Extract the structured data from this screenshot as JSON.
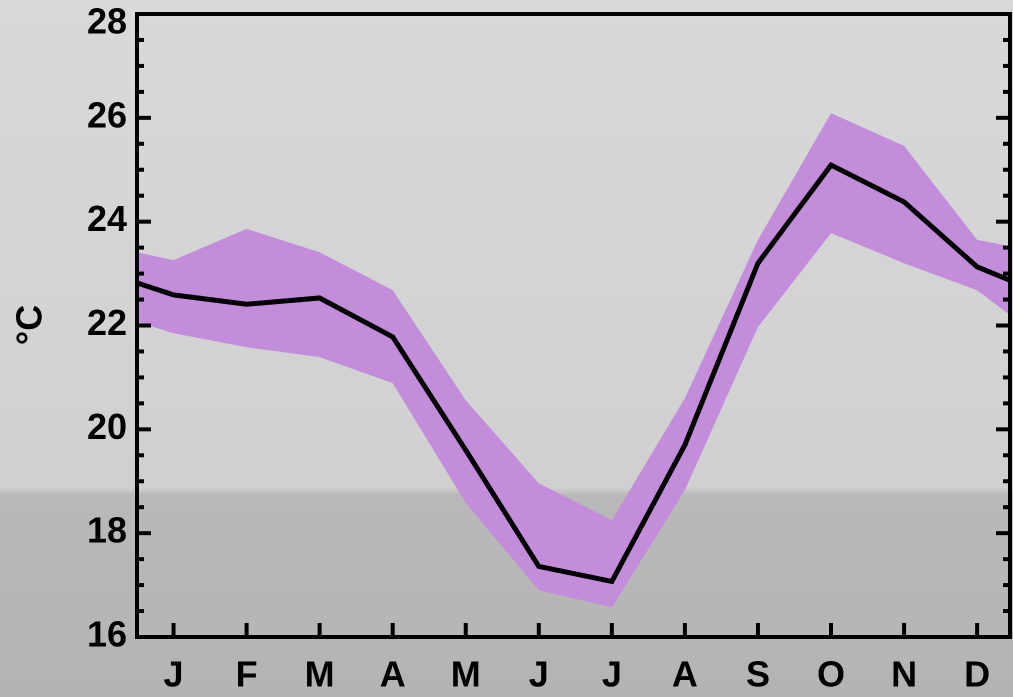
{
  "chart_data": {
    "type": "line-band",
    "y_label": "°C",
    "x": [
      0.5,
      1,
      2,
      3,
      4,
      5,
      6,
      7,
      8,
      9,
      10,
      11,
      12,
      12.45
    ],
    "values": [
      22.82,
      22.59,
      22.41,
      22.53,
      21.78,
      19.6,
      17.36,
      17.07,
      19.7,
      23.2,
      25.09,
      24.38,
      23.13,
      22.87
    ],
    "band_upper": [
      23.41,
      23.26,
      23.86,
      23.41,
      22.68,
      20.56,
      18.96,
      18.25,
      20.6,
      23.65,
      26.09,
      25.46,
      23.65,
      23.53
    ],
    "band_lower": [
      22.07,
      21.85,
      21.58,
      21.39,
      20.89,
      18.58,
      16.9,
      16.57,
      18.83,
      21.97,
      23.78,
      23.2,
      22.68,
      22.2
    ],
    "line_color": "#000000",
    "band_color": "#c38ddb",
    "xlim": [
      0.5,
      12.45
    ],
    "ylim": [
      16,
      28
    ],
    "xticks": [
      {
        "value": 1,
        "label": "J"
      },
      {
        "value": 2,
        "label": "F"
      },
      {
        "value": 3,
        "label": "M"
      },
      {
        "value": 4,
        "label": "A"
      },
      {
        "value": 5,
        "label": "M"
      },
      {
        "value": 6,
        "label": "J"
      },
      {
        "value": 7,
        "label": "J"
      },
      {
        "value": 8,
        "label": "A"
      },
      {
        "value": 9,
        "label": "S"
      },
      {
        "value": 10,
        "label": "O"
      },
      {
        "value": 11,
        "label": "N"
      },
      {
        "value": 12,
        "label": "D"
      }
    ],
    "yticks": [
      16,
      18,
      20,
      22,
      24,
      26,
      28
    ],
    "yminorticks": [
      16.5,
      17,
      17.5,
      18.5,
      19,
      19.5,
      20.5,
      21,
      21.5,
      22.5,
      23,
      23.5,
      24.5,
      25,
      25.5,
      26.5,
      27,
      27.5
    ]
  }
}
